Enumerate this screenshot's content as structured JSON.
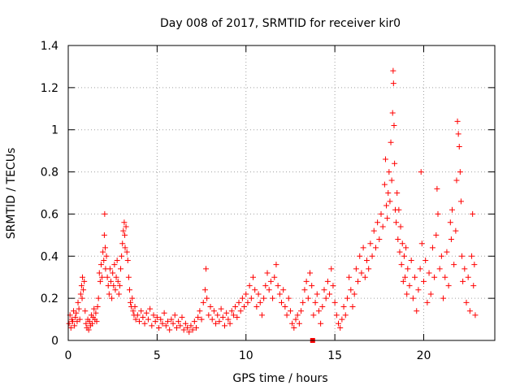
{
  "chart_data": {
    "type": "scatter",
    "title": "Day 008 of 2017, SRMTID for receiver kir0",
    "xlabel": "GPS time / hours",
    "ylabel": "SRMTID / TECUs",
    "xlim": [
      0,
      24
    ],
    "ylim": [
      0,
      1.4
    ],
    "xticks": [
      0,
      5,
      10,
      15,
      20
    ],
    "yticks": [
      0,
      0.2,
      0.4,
      0.6,
      0.8,
      1,
      1.2,
      1.4
    ],
    "xtick_labels": [
      "0",
      "5",
      "10",
      "15",
      "20"
    ],
    "ytick_labels": [
      "0",
      "0.2",
      "0.4",
      "0.6",
      "0.8",
      "1",
      "1.2",
      "1.4"
    ],
    "grid": true,
    "marker": "+",
    "color": "#ff0000",
    "series": [
      {
        "name": "SRMTID",
        "points": [
          [
            0.05,
            0.08
          ],
          [
            0.1,
            0.12
          ],
          [
            0.15,
            0.06
          ],
          [
            0.2,
            0.1
          ],
          [
            0.25,
            0.09
          ],
          [
            0.3,
            0.14
          ],
          [
            0.35,
            0.07
          ],
          [
            0.4,
            0.11
          ],
          [
            0.45,
            0.13
          ],
          [
            0.5,
            0.09
          ],
          [
            0.55,
            0.18
          ],
          [
            0.6,
            0.15
          ],
          [
            0.65,
            0.1
          ],
          [
            0.7,
            0.22
          ],
          [
            0.75,
            0.26
          ],
          [
            0.78,
            0.2
          ],
          [
            0.8,
            0.3
          ],
          [
            0.85,
            0.24
          ],
          [
            0.9,
            0.28
          ],
          [
            0.95,
            0.14
          ],
          [
            1.0,
            0.08
          ],
          [
            1.05,
            0.06
          ],
          [
            1.1,
            0.1
          ],
          [
            1.15,
            0.05
          ],
          [
            1.2,
            0.09
          ],
          [
            1.25,
            0.07
          ],
          [
            1.3,
            0.12
          ],
          [
            1.35,
            0.08
          ],
          [
            1.4,
            0.11
          ],
          [
            1.45,
            0.15
          ],
          [
            1.5,
            0.1
          ],
          [
            1.55,
            0.13
          ],
          [
            1.6,
            0.09
          ],
          [
            1.65,
            0.16
          ],
          [
            1.7,
            0.2
          ],
          [
            1.75,
            0.32
          ],
          [
            1.8,
            0.28
          ],
          [
            1.85,
            0.36
          ],
          [
            1.9,
            0.3
          ],
          [
            1.95,
            0.42
          ],
          [
            2.0,
            0.38
          ],
          [
            2.03,
            0.5
          ],
          [
            2.05,
            0.6
          ],
          [
            2.08,
            0.44
          ],
          [
            2.1,
            0.34
          ],
          [
            2.15,
            0.4
          ],
          [
            2.2,
            0.3
          ],
          [
            2.25,
            0.26
          ],
          [
            2.3,
            0.22
          ],
          [
            2.35,
            0.34
          ],
          [
            2.4,
            0.28
          ],
          [
            2.45,
            0.2
          ],
          [
            2.5,
            0.32
          ],
          [
            2.55,
            0.26
          ],
          [
            2.6,
            0.36
          ],
          [
            2.65,
            0.24
          ],
          [
            2.7,
            0.3
          ],
          [
            2.75,
            0.38
          ],
          [
            2.8,
            0.28
          ],
          [
            2.85,
            0.22
          ],
          [
            2.9,
            0.26
          ],
          [
            2.95,
            0.34
          ],
          [
            3.0,
            0.4
          ],
          [
            3.05,
            0.46
          ],
          [
            3.1,
            0.52
          ],
          [
            3.15,
            0.56
          ],
          [
            3.18,
            0.5
          ],
          [
            3.2,
            0.44
          ],
          [
            3.25,
            0.54
          ],
          [
            3.3,
            0.42
          ],
          [
            3.35,
            0.38
          ],
          [
            3.4,
            0.3
          ],
          [
            3.45,
            0.24
          ],
          [
            3.5,
            0.18
          ],
          [
            3.55,
            0.16
          ],
          [
            3.6,
            0.2
          ],
          [
            3.65,
            0.14
          ],
          [
            3.7,
            0.12
          ],
          [
            3.75,
            0.16
          ],
          [
            3.8,
            0.1
          ],
          [
            3.9,
            0.12
          ],
          [
            4.0,
            0.09
          ],
          [
            4.1,
            0.14
          ],
          [
            4.2,
            0.11
          ],
          [
            4.3,
            0.08
          ],
          [
            4.4,
            0.13
          ],
          [
            4.5,
            0.1
          ],
          [
            4.6,
            0.15
          ],
          [
            4.7,
            0.07
          ],
          [
            4.8,
            0.12
          ],
          [
            4.9,
            0.09
          ],
          [
            5.0,
            0.11
          ],
          [
            5.1,
            0.06
          ],
          [
            5.2,
            0.1
          ],
          [
            5.3,
            0.08
          ],
          [
            5.4,
            0.13
          ],
          [
            5.5,
            0.07
          ],
          [
            5.6,
            0.09
          ],
          [
            5.7,
            0.05
          ],
          [
            5.8,
            0.1
          ],
          [
            5.9,
            0.08
          ],
          [
            6.0,
            0.12
          ],
          [
            6.1,
            0.06
          ],
          [
            6.2,
            0.09
          ],
          [
            6.3,
            0.07
          ],
          [
            6.4,
            0.11
          ],
          [
            6.5,
            0.05
          ],
          [
            6.6,
            0.08
          ],
          [
            6.7,
            0.06
          ],
          [
            6.8,
            0.04
          ],
          [
            6.9,
            0.07
          ],
          [
            7.0,
            0.05
          ],
          [
            7.1,
            0.09
          ],
          [
            7.2,
            0.06
          ],
          [
            7.3,
            0.11
          ],
          [
            7.4,
            0.14
          ],
          [
            7.5,
            0.1
          ],
          [
            7.6,
            0.18
          ],
          [
            7.7,
            0.24
          ],
          [
            7.75,
            0.34
          ],
          [
            7.8,
            0.2
          ],
          [
            7.9,
            0.12
          ],
          [
            8.0,
            0.16
          ],
          [
            8.1,
            0.1
          ],
          [
            8.2,
            0.14
          ],
          [
            8.3,
            0.08
          ],
          [
            8.4,
            0.12
          ],
          [
            8.5,
            0.09
          ],
          [
            8.6,
            0.15
          ],
          [
            8.7,
            0.11
          ],
          [
            8.8,
            0.07
          ],
          [
            8.9,
            0.13
          ],
          [
            9.0,
            0.1
          ],
          [
            9.1,
            0.08
          ],
          [
            9.2,
            0.14
          ],
          [
            9.3,
            0.12
          ],
          [
            9.4,
            0.16
          ],
          [
            9.5,
            0.11
          ],
          [
            9.6,
            0.18
          ],
          [
            9.7,
            0.14
          ],
          [
            9.8,
            0.2
          ],
          [
            9.9,
            0.16
          ],
          [
            10.0,
            0.22
          ],
          [
            10.1,
            0.18
          ],
          [
            10.2,
            0.26
          ],
          [
            10.3,
            0.2
          ],
          [
            10.4,
            0.3
          ],
          [
            10.5,
            0.24
          ],
          [
            10.6,
            0.16
          ],
          [
            10.7,
            0.22
          ],
          [
            10.8,
            0.18
          ],
          [
            10.9,
            0.12
          ],
          [
            11.0,
            0.2
          ],
          [
            11.1,
            0.26
          ],
          [
            11.2,
            0.32
          ],
          [
            11.3,
            0.24
          ],
          [
            11.4,
            0.28
          ],
          [
            11.5,
            0.2
          ],
          [
            11.6,
            0.3
          ],
          [
            11.7,
            0.36
          ],
          [
            11.8,
            0.26
          ],
          [
            11.9,
            0.22
          ],
          [
            12.0,
            0.18
          ],
          [
            12.1,
            0.24
          ],
          [
            12.2,
            0.16
          ],
          [
            12.3,
            0.12
          ],
          [
            12.4,
            0.2
          ],
          [
            12.5,
            0.14
          ],
          [
            12.6,
            0.08
          ],
          [
            12.7,
            0.06
          ],
          [
            12.8,
            0.1
          ],
          [
            12.9,
            0.12
          ],
          [
            13.0,
            0.08
          ],
          [
            13.1,
            0.14
          ],
          [
            13.2,
            0.18
          ],
          [
            13.3,
            0.24
          ],
          [
            13.4,
            0.28
          ],
          [
            13.5,
            0.2
          ],
          [
            13.6,
            0.32
          ],
          [
            13.7,
            0.26
          ],
          [
            13.8,
            0.12
          ],
          [
            13.9,
            0.18
          ],
          [
            14.0,
            0.22
          ],
          [
            14.1,
            0.14
          ],
          [
            14.2,
            0.08
          ],
          [
            14.3,
            0.16
          ],
          [
            14.4,
            0.24
          ],
          [
            14.5,
            0.2
          ],
          [
            14.6,
            0.28
          ],
          [
            14.7,
            0.22
          ],
          [
            14.8,
            0.34
          ],
          [
            14.9,
            0.26
          ],
          [
            15.0,
            0.18
          ],
          [
            15.1,
            0.12
          ],
          [
            15.2,
            0.08
          ],
          [
            15.3,
            0.06
          ],
          [
            15.4,
            0.1
          ],
          [
            15.5,
            0.16
          ],
          [
            15.6,
            0.12
          ],
          [
            15.7,
            0.2
          ],
          [
            15.8,
            0.3
          ],
          [
            15.9,
            0.24
          ],
          [
            16.0,
            0.16
          ],
          [
            16.1,
            0.22
          ],
          [
            16.2,
            0.34
          ],
          [
            16.3,
            0.28
          ],
          [
            16.4,
            0.4
          ],
          [
            16.5,
            0.32
          ],
          [
            16.6,
            0.44
          ],
          [
            16.7,
            0.3
          ],
          [
            16.8,
            0.38
          ],
          [
            16.9,
            0.34
          ],
          [
            17.0,
            0.46
          ],
          [
            17.1,
            0.4
          ],
          [
            17.2,
            0.52
          ],
          [
            17.3,
            0.44
          ],
          [
            17.4,
            0.56
          ],
          [
            17.5,
            0.48
          ],
          [
            17.6,
            0.6
          ],
          [
            17.7,
            0.54
          ],
          [
            17.8,
            0.74
          ],
          [
            17.85,
            0.86
          ],
          [
            17.9,
            0.64
          ],
          [
            17.95,
            0.58
          ],
          [
            18.0,
            0.7
          ],
          [
            18.05,
            0.8
          ],
          [
            18.1,
            0.66
          ],
          [
            18.15,
            0.94
          ],
          [
            18.2,
            0.76
          ],
          [
            18.25,
            1.08
          ],
          [
            18.28,
            1.28
          ],
          [
            18.3,
            1.22
          ],
          [
            18.33,
            1.02
          ],
          [
            18.36,
            0.84
          ],
          [
            18.4,
            0.62
          ],
          [
            18.45,
            0.56
          ],
          [
            18.5,
            0.7
          ],
          [
            18.55,
            0.48
          ],
          [
            18.6,
            0.62
          ],
          [
            18.65,
            0.42
          ],
          [
            18.7,
            0.54
          ],
          [
            18.75,
            0.36
          ],
          [
            18.8,
            0.46
          ],
          [
            18.85,
            0.28
          ],
          [
            18.9,
            0.4
          ],
          [
            18.95,
            0.3
          ],
          [
            19.0,
            0.44
          ],
          [
            19.05,
            0.22
          ],
          [
            19.1,
            0.34
          ],
          [
            19.2,
            0.26
          ],
          [
            19.3,
            0.38
          ],
          [
            19.4,
            0.2
          ],
          [
            19.5,
            0.3
          ],
          [
            19.6,
            0.14
          ],
          [
            19.7,
            0.24
          ],
          [
            19.8,
            0.34
          ],
          [
            19.85,
            0.8
          ],
          [
            19.9,
            0.46
          ],
          [
            20.0,
            0.28
          ],
          [
            20.1,
            0.38
          ],
          [
            20.2,
            0.18
          ],
          [
            20.3,
            0.32
          ],
          [
            20.4,
            0.22
          ],
          [
            20.5,
            0.44
          ],
          [
            20.6,
            0.3
          ],
          [
            20.7,
            0.5
          ],
          [
            20.75,
            0.72
          ],
          [
            20.8,
            0.6
          ],
          [
            20.9,
            0.34
          ],
          [
            21.0,
            0.4
          ],
          [
            21.1,
            0.2
          ],
          [
            21.2,
            0.3
          ],
          [
            21.3,
            0.42
          ],
          [
            21.4,
            0.26
          ],
          [
            21.5,
            0.56
          ],
          [
            21.55,
            0.48
          ],
          [
            21.6,
            0.62
          ],
          [
            21.7,
            0.36
          ],
          [
            21.8,
            0.52
          ],
          [
            21.85,
            0.76
          ],
          [
            21.9,
            1.04
          ],
          [
            21.95,
            0.98
          ],
          [
            22.0,
            0.92
          ],
          [
            22.05,
            0.8
          ],
          [
            22.1,
            0.66
          ],
          [
            22.15,
            0.4
          ],
          [
            22.2,
            0.28
          ],
          [
            22.3,
            0.34
          ],
          [
            22.4,
            0.18
          ],
          [
            22.5,
            0.3
          ],
          [
            22.6,
            0.14
          ],
          [
            22.7,
            0.4
          ],
          [
            22.75,
            0.6
          ],
          [
            22.8,
            0.26
          ],
          [
            22.85,
            0.36
          ],
          [
            22.9,
            0.12
          ]
        ]
      }
    ],
    "outlier_marker": {
      "x": 13.75,
      "y": 0.0
    }
  }
}
